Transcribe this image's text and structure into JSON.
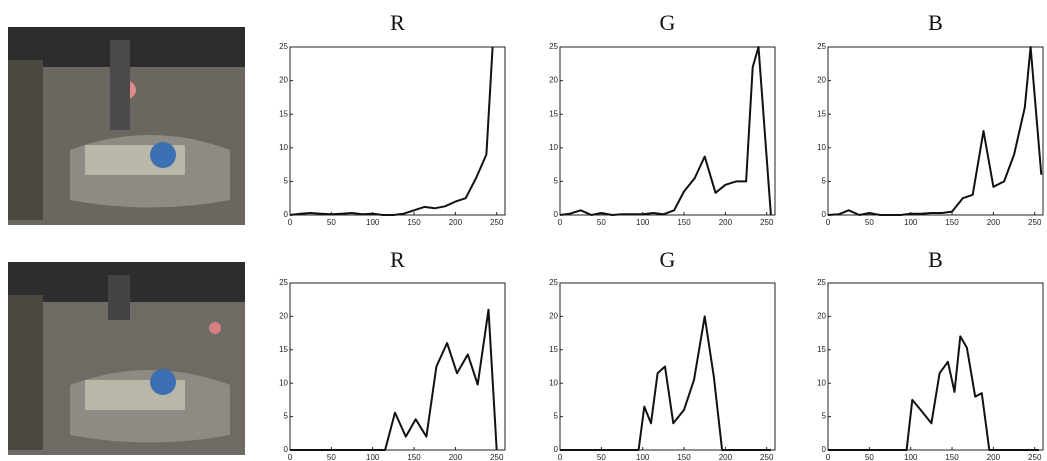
{
  "chart_data": [
    {
      "type": "line",
      "title": "R",
      "xlim": [
        0,
        260
      ],
      "ylim": [
        0,
        25
      ],
      "xticks": [
        0,
        50,
        100,
        150,
        200,
        250
      ],
      "yticks": [
        0,
        5,
        10,
        15,
        20,
        25
      ],
      "series": [
        {
          "color": "#111111",
          "x": [
            0,
            12.5,
            25,
            37.5,
            50,
            62.5,
            75,
            87.5,
            100,
            112.5,
            125,
            137.5,
            150,
            162.5,
            175,
            187.5,
            200,
            212.5,
            225,
            237.5,
            245
          ],
          "values": [
            0,
            0.2,
            0.3,
            0.2,
            0.1,
            0.2,
            0.3,
            0.1,
            0.2,
            0,
            0,
            0.2,
            0.7,
            1.2,
            1,
            1.3,
            2,
            2.5,
            5.5,
            9,
            25
          ]
        }
      ]
    },
    {
      "type": "line",
      "title": "G",
      "xlim": [
        0,
        260
      ],
      "ylim": [
        0,
        25
      ],
      "xticks": [
        0,
        50,
        100,
        150,
        200,
        250
      ],
      "yticks": [
        0,
        5,
        10,
        15,
        20,
        25
      ],
      "series": [
        {
          "color": "#111111",
          "x": [
            0,
            12,
            25,
            38,
            50,
            63,
            75,
            88,
            100,
            113,
            125,
            138,
            150,
            163,
            175,
            188,
            200,
            213,
            225,
            233,
            240,
            255
          ],
          "values": [
            0,
            0.2,
            0.7,
            0,
            0.3,
            0,
            0.1,
            0.1,
            0.1,
            0.3,
            0.1,
            0.7,
            3.5,
            5.5,
            8.7,
            3.3,
            4.5,
            5,
            5,
            22,
            25,
            0
          ]
        }
      ]
    },
    {
      "type": "line",
      "title": "B",
      "xlim": [
        0,
        260
      ],
      "ylim": [
        0,
        25
      ],
      "xticks": [
        0,
        50,
        100,
        150,
        200,
        250
      ],
      "yticks": [
        0,
        5,
        10,
        15,
        20,
        25
      ],
      "series": [
        {
          "color": "#111111",
          "x": [
            0,
            13,
            25,
            38,
            50,
            63,
            75,
            88,
            100,
            113,
            125,
            138,
            150,
            163,
            175,
            188,
            200,
            213,
            225,
            238,
            245,
            258
          ],
          "values": [
            0,
            0.1,
            0.7,
            0,
            0.3,
            0,
            0,
            0,
            0.2,
            0.2,
            0.3,
            0.3,
            0.5,
            2.5,
            3,
            12.5,
            4.2,
            5,
            9,
            16,
            25,
            6
          ]
        }
      ]
    },
    {
      "type": "line",
      "title": "R",
      "xlim": [
        0,
        260
      ],
      "ylim": [
        0,
        25
      ],
      "xticks": [
        0,
        50,
        100,
        150,
        200,
        250
      ],
      "yticks": [
        0,
        5,
        10,
        15,
        20,
        25
      ],
      "series": [
        {
          "color": "#111111",
          "x": [
            0,
            115,
            127,
            140,
            152,
            165,
            177,
            190,
            202,
            215,
            227,
            240,
            250
          ],
          "values": [
            0,
            0,
            5.6,
            2,
            4.6,
            2,
            12.5,
            16,
            11.5,
            14.3,
            9.8,
            21,
            0
          ]
        }
      ]
    },
    {
      "type": "line",
      "title": "G",
      "xlim": [
        0,
        260
      ],
      "ylim": [
        0,
        25
      ],
      "xticks": [
        0,
        50,
        100,
        150,
        200,
        250
      ],
      "yticks": [
        0,
        5,
        10,
        15,
        20,
        25
      ],
      "series": [
        {
          "color": "#111111",
          "x": [
            0,
            95,
            102,
            110,
            118,
            127,
            137,
            150,
            162,
            175,
            186,
            196,
            255
          ],
          "values": [
            0,
            0,
            6.5,
            4,
            11.5,
            12.5,
            4,
            6,
            10.5,
            20,
            11,
            0,
            0
          ]
        }
      ]
    },
    {
      "type": "line",
      "title": "B",
      "xlim": [
        0,
        260
      ],
      "ylim": [
        0,
        25
      ],
      "xticks": [
        0,
        50,
        100,
        150,
        200,
        250
      ],
      "yticks": [
        0,
        5,
        10,
        15,
        20,
        25
      ],
      "series": [
        {
          "color": "#111111",
          "x": [
            0,
            95,
            102,
            112,
            125,
            135,
            145,
            153,
            160,
            168,
            178,
            186,
            195,
            255
          ],
          "values": [
            0,
            0,
            7.5,
            6,
            4,
            11.5,
            13.2,
            8.7,
            17,
            15.3,
            8,
            8.5,
            0,
            0
          ]
        }
      ]
    }
  ]
}
